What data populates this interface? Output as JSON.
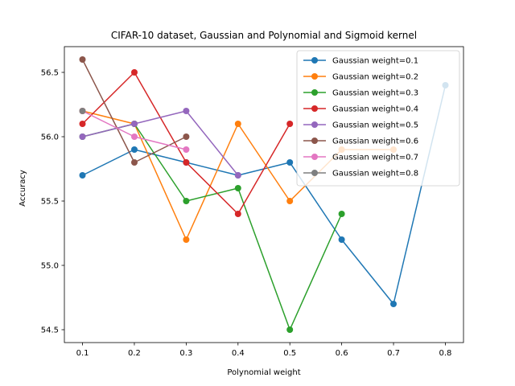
{
  "chart_data": {
    "type": "line",
    "title": "CIFAR-10 dataset, Gaussian and Polynomial and Sigmoid kernel",
    "xlabel": "Polynomial weight",
    "ylabel": "Accuracy",
    "xlim": [
      0.065,
      0.835
    ],
    "ylim": [
      54.4,
      56.7
    ],
    "xticks": [
      0.1,
      0.2,
      0.3,
      0.4,
      0.5,
      0.6,
      0.7,
      0.8
    ],
    "xtick_labels": [
      "0.1",
      "0.2",
      "0.3",
      "0.4",
      "0.5",
      "0.6",
      "0.7",
      "0.8"
    ],
    "yticks": [
      54.5,
      55.0,
      55.5,
      56.0,
      56.5
    ],
    "ytick_labels": [
      "54.5",
      "55.0",
      "55.5",
      "56.0",
      "56.5"
    ],
    "grid": false,
    "legend_position": "top-right",
    "series": [
      {
        "name": "Gaussian weight=0.1",
        "color": "#1f77b4",
        "x": [
          0.1,
          0.2,
          0.3,
          0.4,
          0.5,
          0.6,
          0.7,
          0.8
        ],
        "y": [
          55.7,
          55.9,
          55.8,
          55.7,
          55.8,
          55.2,
          54.7,
          56.4
        ]
      },
      {
        "name": "Gaussian weight=0.2",
        "color": "#ff7f0e",
        "x": [
          0.1,
          0.2,
          0.3,
          0.4,
          0.5,
          0.6,
          0.7
        ],
        "y": [
          56.2,
          56.1,
          55.2,
          56.1,
          55.5,
          55.9,
          55.9
        ]
      },
      {
        "name": "Gaussian weight=0.3",
        "color": "#2ca02c",
        "x": [
          0.1,
          0.2,
          0.3,
          0.4,
          0.5,
          0.6
        ],
        "y": [
          56.0,
          56.1,
          55.5,
          55.6,
          54.5,
          55.4
        ]
      },
      {
        "name": "Gaussian weight=0.4",
        "color": "#d62728",
        "x": [
          0.1,
          0.2,
          0.3,
          0.4,
          0.5
        ],
        "y": [
          56.1,
          56.5,
          55.8,
          55.4,
          56.1
        ]
      },
      {
        "name": "Gaussian weight=0.5",
        "color": "#9467bd",
        "x": [
          0.1,
          0.2,
          0.3,
          0.4
        ],
        "y": [
          56.0,
          56.1,
          56.2,
          55.7
        ]
      },
      {
        "name": "Gaussian weight=0.6",
        "color": "#8c564b",
        "x": [
          0.1,
          0.2,
          0.3
        ],
        "y": [
          56.6,
          55.8,
          56.0
        ]
      },
      {
        "name": "Gaussian weight=0.7",
        "color": "#e377c2",
        "x": [
          0.1,
          0.2,
          0.3
        ],
        "y": [
          56.2,
          56.0,
          55.9
        ]
      },
      {
        "name": "Gaussian weight=0.8",
        "color": "#7f7f7f",
        "x": [
          0.1
        ],
        "y": [
          56.2
        ]
      }
    ]
  }
}
